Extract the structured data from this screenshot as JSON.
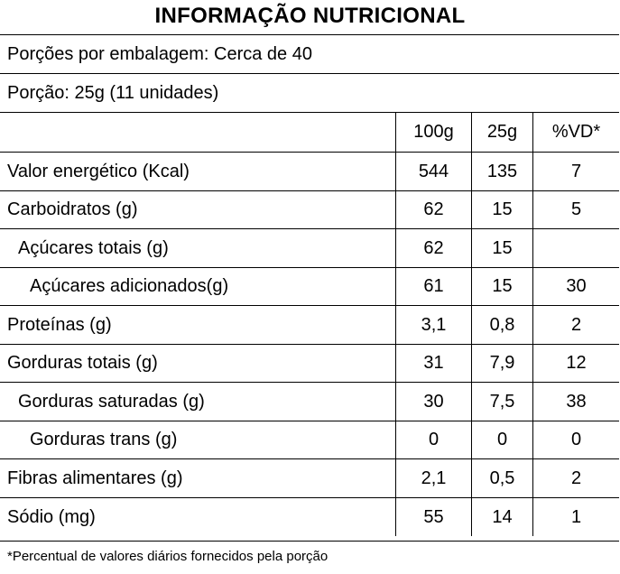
{
  "label": {
    "title": "INFORMAÇÃO NUTRICIONAL",
    "servings_per_package": "Porções por embalagem: Cerca de 40",
    "serving_size": "Porção: 25g (11 unidades)",
    "columns": [
      "100g",
      "25g",
      "%VD*"
    ],
    "rows": [
      {
        "name": "Valor energético (Kcal)",
        "per100g": "544",
        "perServing": "135",
        "dv": "7"
      },
      {
        "name": "Carboidratos (g)",
        "per100g": "62",
        "perServing": "15",
        "dv": "5"
      },
      {
        "name": "Açúcares totais (g)",
        "per100g": "62",
        "perServing": "15",
        "dv": ""
      },
      {
        "name": "Açúcares adicionados(g)",
        "per100g": "61",
        "perServing": "15",
        "dv": "30"
      },
      {
        "name": "Proteínas (g)",
        "per100g": "3,1",
        "perServing": "0,8",
        "dv": "2"
      },
      {
        "name": "Gorduras totais (g)",
        "per100g": "31",
        "perServing": "7,9",
        "dv": "12"
      },
      {
        "name": "Gorduras saturadas (g)",
        "per100g": "30",
        "perServing": "7,5",
        "dv": "38"
      },
      {
        "name": "Gorduras trans (g)",
        "per100g": "0",
        "perServing": "0",
        "dv": "0"
      },
      {
        "name": "Fibras alimentares (g)",
        "per100g": "2,1",
        "perServing": "0,5",
        "dv": "2"
      },
      {
        "name": "Sódio (mg)",
        "per100g": "55",
        "perServing": "14",
        "dv": "1"
      }
    ],
    "footnote": "*Percentual de valores diários fornecidos pela porção"
  }
}
